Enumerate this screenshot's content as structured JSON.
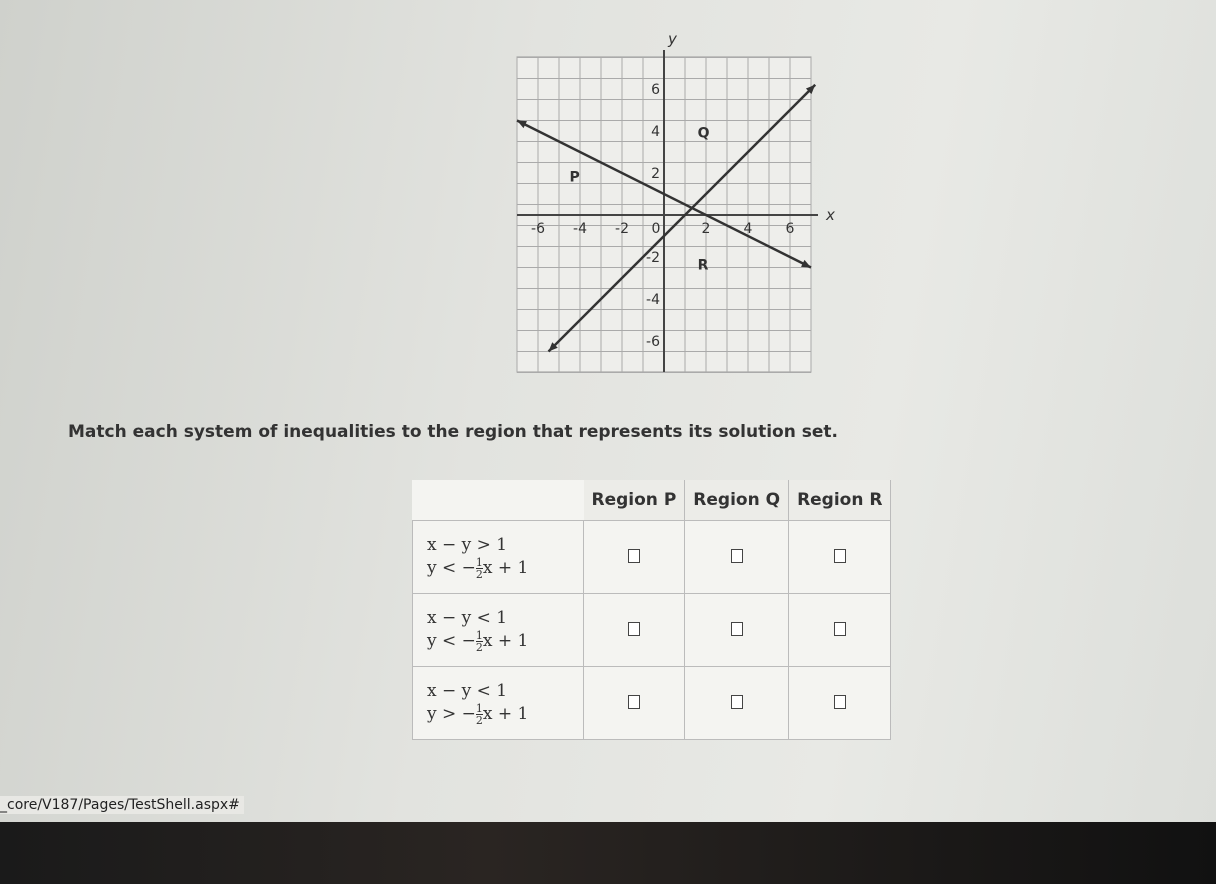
{
  "graph": {
    "x_label": "x",
    "y_label": "y",
    "x_tick_labels": [
      "-6",
      "-4",
      "-2",
      "0",
      "2",
      "4",
      "6"
    ],
    "y_tick_labels": [
      "6",
      "4",
      "2",
      "-2",
      "-4",
      "-6"
    ],
    "region_labels": [
      "P",
      "Q",
      "R"
    ]
  },
  "instruction": "Match each system of inequalities to the region that represents its solution set.",
  "table": {
    "headers": [
      "Region P",
      "Region Q",
      "Region R"
    ],
    "rows": [
      {
        "line1": "x − y > 1",
        "line2_start": "y < −",
        "frac_num": "1",
        "frac_den": "2",
        "line2_end": "x + 1"
      },
      {
        "line1": "x − y < 1",
        "line2_start": "y < −",
        "frac_num": "1",
        "frac_den": "2",
        "line2_end": "x + 1"
      },
      {
        "line1": "x − y < 1",
        "line2_start": "y > −",
        "frac_num": "1",
        "frac_den": "2",
        "line2_end": "x + 1"
      }
    ]
  },
  "status_url": "_core/V187/Pages/TestShell.aspx#"
}
